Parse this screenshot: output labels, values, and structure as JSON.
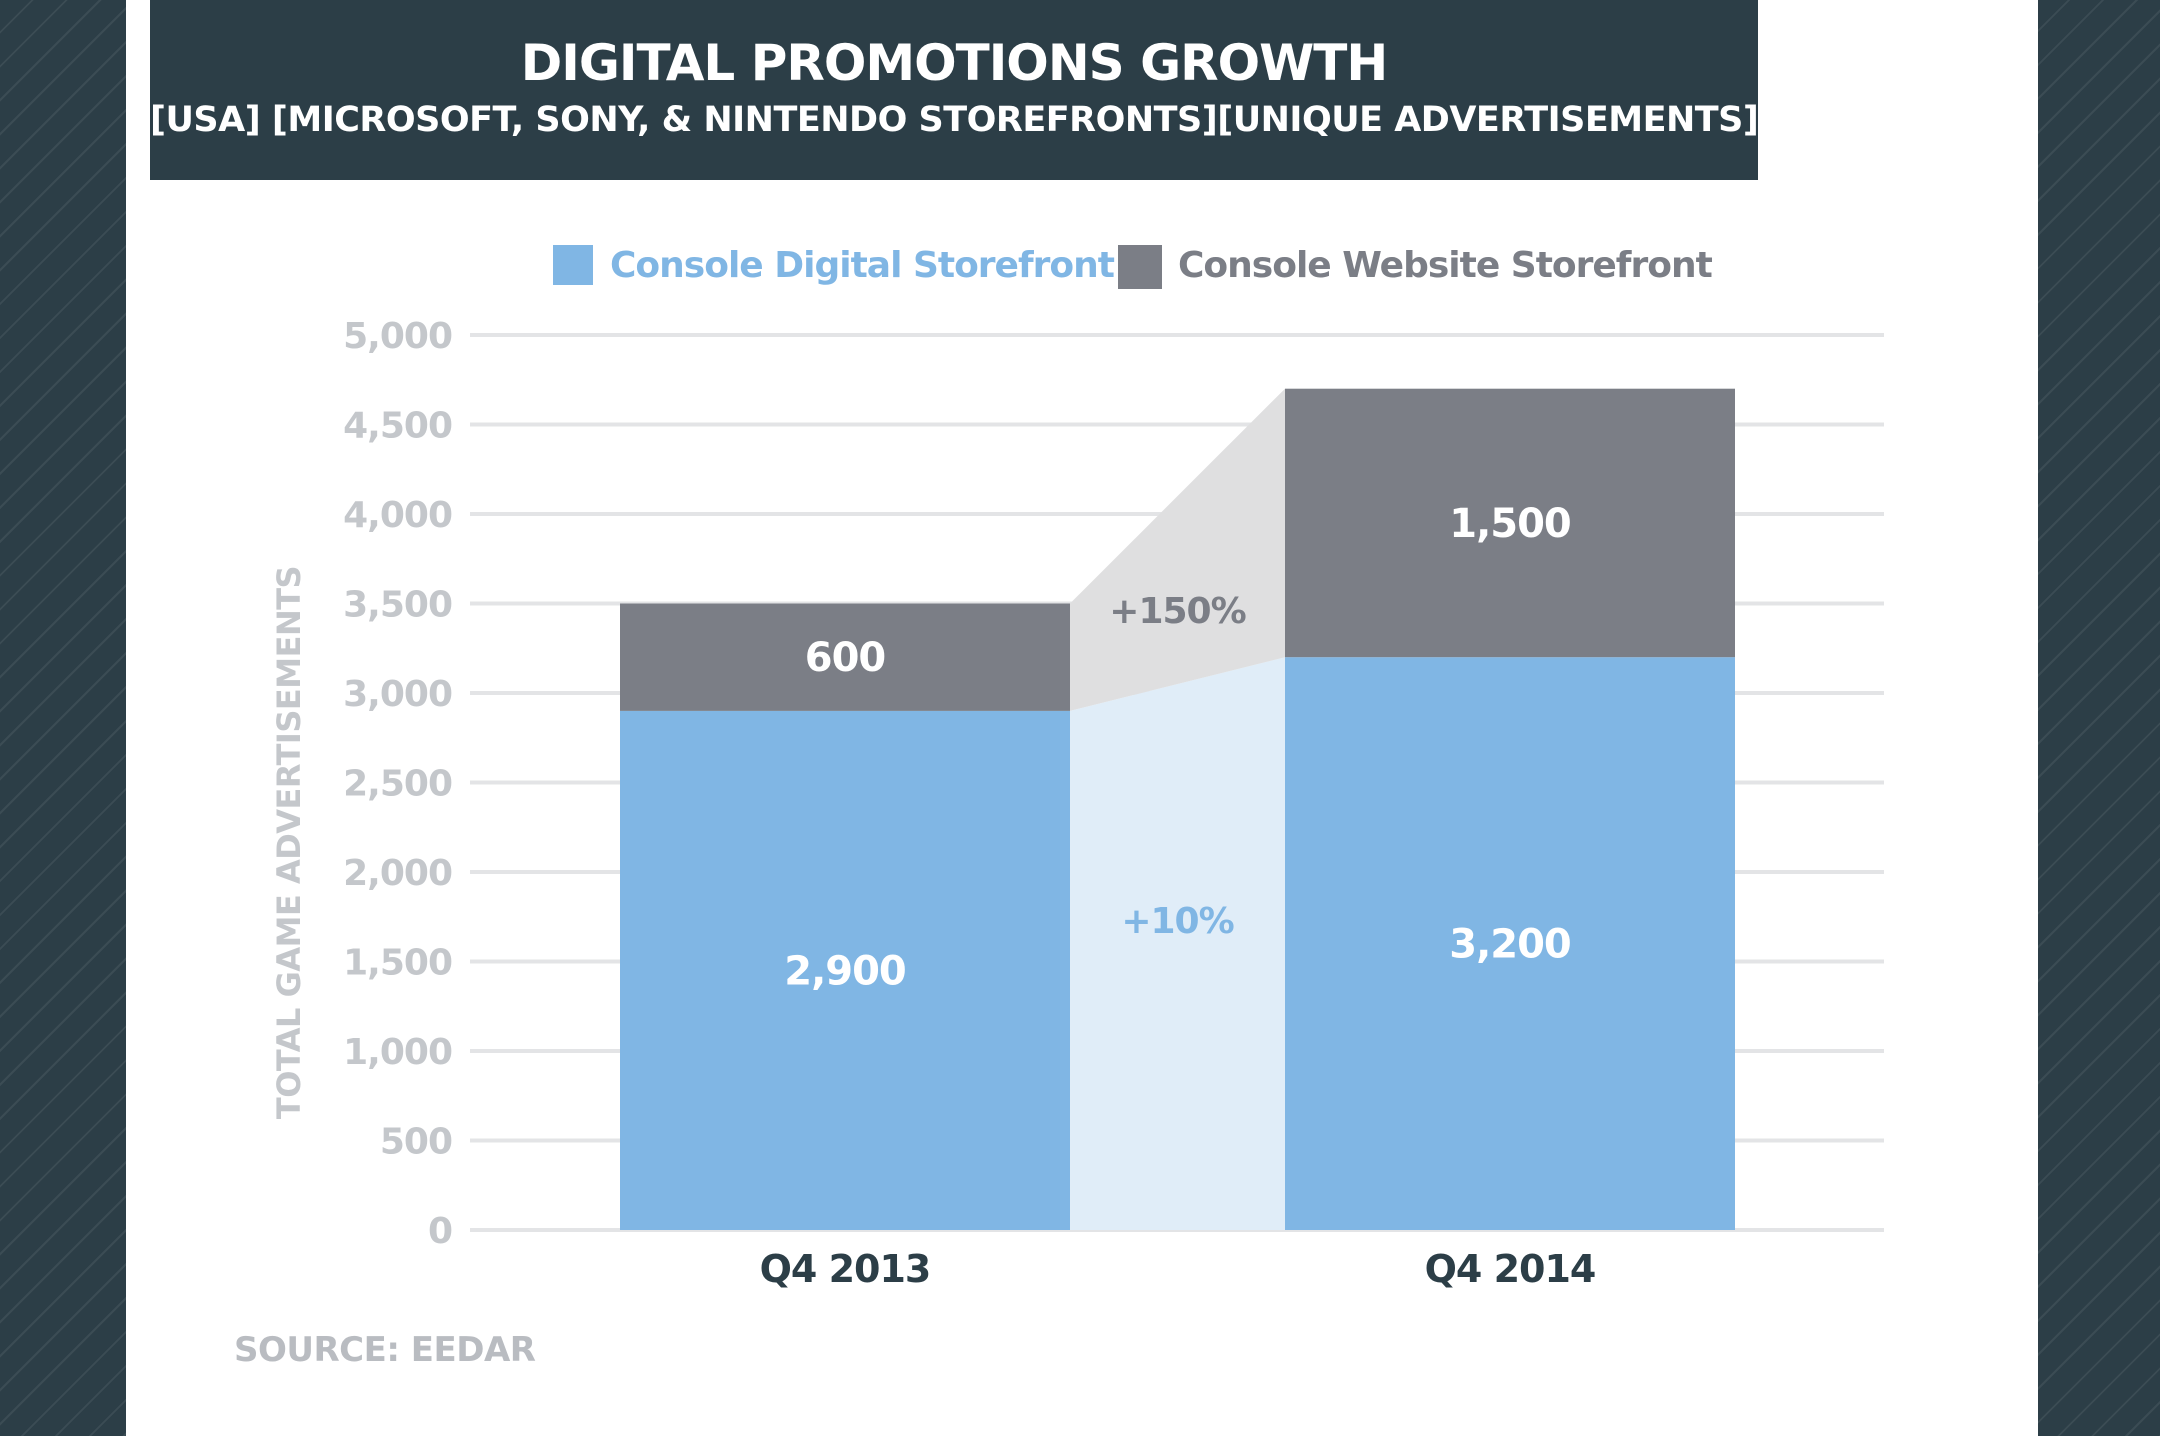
{
  "header": {
    "title": "DIGITAL PROMOTIONS GROWTH",
    "subtitle": "[USA] [MICROSOFT, SONY, & NINTENDO STOREFRONTS][UNIQUE ADVERTISEMENTS]"
  },
  "source": "SOURCE: EEDAR",
  "chart_data": {
    "type": "bar",
    "stacked": true,
    "categories": [
      "Q4 2013",
      "Q4 2014"
    ],
    "series": [
      {
        "name": "Console Digital Storefront",
        "values": [
          2900,
          3200
        ],
        "labels": [
          "2,900",
          "3,200"
        ],
        "color": "#80b6e4"
      },
      {
        "name": "Console Website Storefront",
        "values": [
          600,
          1500
        ],
        "labels": [
          "600",
          "1,500"
        ],
        "color": "#7b7e86"
      }
    ],
    "ylabel": "TOTAL GAME ADVERTISEMENTS",
    "ylim": [
      0,
      5000
    ],
    "yticks": [
      0,
      500,
      1000,
      1500,
      2000,
      2500,
      3000,
      3500,
      4000,
      4500,
      5000
    ],
    "ytick_labels": [
      "0",
      "500",
      "1,000",
      "1,500",
      "2,000",
      "2,500",
      "3,000",
      "3,500",
      "4,000",
      "4,500",
      "5,000"
    ],
    "grid": true,
    "legend_position": "top",
    "growth_annotations": [
      {
        "series": "Console Website Storefront",
        "text": "+150%",
        "color": "#7b7e86"
      },
      {
        "series": "Console Digital Storefront",
        "text": "+10%",
        "color": "#80b6e4"
      }
    ],
    "colors": {
      "grid": "#e3e4e6",
      "tick_text": "#c4c7cb",
      "category_text": "#2c3e47",
      "connector_gray": "#dfdfe0",
      "connector_blue": "#e0edf8"
    }
  }
}
